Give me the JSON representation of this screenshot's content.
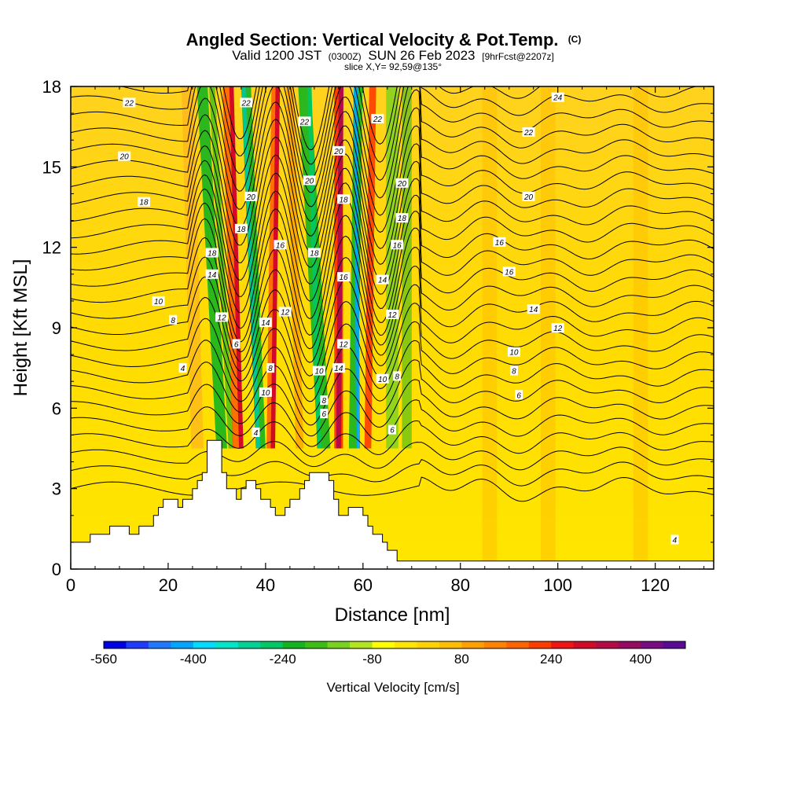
{
  "title": {
    "main": "Angled Section: Vertical Velocity & Pot.Temp.",
    "main_units": "(C)",
    "valid_prefix": "Valid 1200 JST",
    "valid_utc": "(0300Z)",
    "valid_date": "SUN 26 Feb 2023",
    "forecast": "[9hrFcst@2207z]",
    "slice": "slice X,Y= 92,59@135°"
  },
  "chart_data": {
    "type": "heatmap",
    "xlabel": "Distance [nm]",
    "ylabel": "Height [Kft MSL]",
    "xlim": [
      0,
      132
    ],
    "ylim": [
      0,
      18
    ],
    "x_ticks": [
      "0",
      "20",
      "40",
      "60",
      "80",
      "100",
      "120"
    ],
    "y_ticks": [
      "0",
      "3",
      "6",
      "9",
      "12",
      "15",
      "18"
    ],
    "colorbar": {
      "title": "Vertical Velocity [cm/s]",
      "range": [
        -560,
        480
      ],
      "labels": [
        "-560",
        "-400",
        "-240",
        "-80",
        "80",
        "240",
        "400"
      ],
      "colors": [
        "#0000e6",
        "#1e3cff",
        "#1f78ff",
        "#00a6ff",
        "#00dcff",
        "#00e6c8",
        "#00d296",
        "#00c864",
        "#14b41e",
        "#3cbe14",
        "#78d21e",
        "#b4e61e",
        "#ffff00",
        "#ffe600",
        "#ffd200",
        "#ffbe00",
        "#ffa000",
        "#ff8200",
        "#ff6400",
        "#ff3c00",
        "#f01414",
        "#d20a28",
        "#b40a46",
        "#960a64",
        "#780a82",
        "#5a0a96"
      ]
    },
    "terrain_kft": [
      [
        0,
        1.0
      ],
      [
        4,
        1.0
      ],
      [
        4,
        1.3
      ],
      [
        8,
        1.3
      ],
      [
        8,
        1.6
      ],
      [
        12,
        1.6
      ],
      [
        12,
        1.3
      ],
      [
        14,
        1.3
      ],
      [
        14,
        1.6
      ],
      [
        17,
        1.6
      ],
      [
        17,
        2.0
      ],
      [
        18,
        2.0
      ],
      [
        18,
        2.3
      ],
      [
        19,
        2.3
      ],
      [
        19,
        2.6
      ],
      [
        22,
        2.6
      ],
      [
        22,
        2.3
      ],
      [
        23,
        2.3
      ],
      [
        23,
        2.6
      ],
      [
        25,
        2.6
      ],
      [
        25,
        3.0
      ],
      [
        26,
        3.0
      ],
      [
        26,
        3.3
      ],
      [
        27,
        3.3
      ],
      [
        27,
        3.6
      ],
      [
        28,
        3.6
      ],
      [
        28,
        4.8
      ],
      [
        31,
        4.8
      ],
      [
        31,
        3.6
      ],
      [
        32,
        3.6
      ],
      [
        32,
        3.0
      ],
      [
        34,
        3.0
      ],
      [
        34,
        2.6
      ],
      [
        35,
        2.6
      ],
      [
        35,
        3.0
      ],
      [
        36,
        3.0
      ],
      [
        36,
        3.3
      ],
      [
        38,
        3.3
      ],
      [
        38,
        3.0
      ],
      [
        39,
        3.0
      ],
      [
        39,
        2.6
      ],
      [
        41,
        2.6
      ],
      [
        41,
        2.3
      ],
      [
        42,
        2.3
      ],
      [
        42,
        2.0
      ],
      [
        44,
        2.0
      ],
      [
        44,
        2.3
      ],
      [
        45,
        2.3
      ],
      [
        45,
        2.6
      ],
      [
        47,
        2.6
      ],
      [
        47,
        3.0
      ],
      [
        48,
        3.0
      ],
      [
        48,
        3.3
      ],
      [
        49,
        3.3
      ],
      [
        49,
        3.6
      ],
      [
        53,
        3.6
      ],
      [
        53,
        3.3
      ],
      [
        54,
        3.3
      ],
      [
        54,
        2.6
      ],
      [
        55,
        2.6
      ],
      [
        55,
        2.0
      ],
      [
        57,
        2.0
      ],
      [
        57,
        2.3
      ],
      [
        60,
        2.3
      ],
      [
        60,
        2.0
      ],
      [
        61,
        2.0
      ],
      [
        61,
        1.6
      ],
      [
        62,
        1.6
      ],
      [
        62,
        1.3
      ],
      [
        64,
        1.3
      ],
      [
        64,
        1.0
      ],
      [
        65,
        1.0
      ],
      [
        65,
        0.7
      ],
      [
        67,
        0.7
      ],
      [
        67,
        0.3
      ],
      [
        71,
        0.3
      ],
      [
        71,
        0.3
      ],
      [
        132,
        0.3
      ]
    ],
    "contour_labels": [
      {
        "x": 12,
        "y": 17.4,
        "text": "22"
      },
      {
        "x": 11,
        "y": 15.4,
        "text": "20"
      },
      {
        "x": 15,
        "y": 13.7,
        "text": "18"
      },
      {
        "x": 18,
        "y": 10.0,
        "text": "10"
      },
      {
        "x": 21,
        "y": 9.3,
        "text": "8"
      },
      {
        "x": 23,
        "y": 7.5,
        "text": "4"
      },
      {
        "x": 29,
        "y": 11.8,
        "text": "18"
      },
      {
        "x": 29,
        "y": 11.0,
        "text": "14"
      },
      {
        "x": 31,
        "y": 9.4,
        "text": "12"
      },
      {
        "x": 34,
        "y": 8.4,
        "text": "6"
      },
      {
        "x": 38,
        "y": 5.1,
        "text": "4"
      },
      {
        "x": 35,
        "y": 12.7,
        "text": "18"
      },
      {
        "x": 37,
        "y": 13.9,
        "text": "20"
      },
      {
        "x": 36,
        "y": 17.4,
        "text": "22"
      },
      {
        "x": 40,
        "y": 9.2,
        "text": "14"
      },
      {
        "x": 40,
        "y": 6.6,
        "text": "10"
      },
      {
        "x": 41,
        "y": 7.5,
        "text": "8"
      },
      {
        "x": 43,
        "y": 12.1,
        "text": "16"
      },
      {
        "x": 44,
        "y": 9.6,
        "text": "12"
      },
      {
        "x": 48,
        "y": 16.7,
        "text": "22"
      },
      {
        "x": 49,
        "y": 14.5,
        "text": "20"
      },
      {
        "x": 50,
        "y": 11.8,
        "text": "18"
      },
      {
        "x": 51,
        "y": 7.4,
        "text": "10"
      },
      {
        "x": 52,
        "y": 6.3,
        "text": "8"
      },
      {
        "x": 52,
        "y": 5.8,
        "text": "6"
      },
      {
        "x": 55,
        "y": 15.6,
        "text": "20"
      },
      {
        "x": 56,
        "y": 13.8,
        "text": "18"
      },
      {
        "x": 56,
        "y": 10.9,
        "text": "16"
      },
      {
        "x": 56,
        "y": 8.4,
        "text": "12"
      },
      {
        "x": 55,
        "y": 7.5,
        "text": "14"
      },
      {
        "x": 63,
        "y": 16.8,
        "text": "22"
      },
      {
        "x": 68,
        "y": 14.4,
        "text": "20"
      },
      {
        "x": 68,
        "y": 13.1,
        "text": "18"
      },
      {
        "x": 67,
        "y": 12.1,
        "text": "16"
      },
      {
        "x": 64,
        "y": 10.8,
        "text": "14"
      },
      {
        "x": 66,
        "y": 9.5,
        "text": "12"
      },
      {
        "x": 64,
        "y": 7.1,
        "text": "10"
      },
      {
        "x": 67,
        "y": 7.2,
        "text": "8"
      },
      {
        "x": 66,
        "y": 5.2,
        "text": "6"
      },
      {
        "x": 100,
        "y": 17.6,
        "text": "24"
      },
      {
        "x": 94,
        "y": 16.3,
        "text": "22"
      },
      {
        "x": 94,
        "y": 13.9,
        "text": "20"
      },
      {
        "x": 88,
        "y": 12.2,
        "text": "16"
      },
      {
        "x": 90,
        "y": 11.1,
        "text": "16"
      },
      {
        "x": 95,
        "y": 9.7,
        "text": "14"
      },
      {
        "x": 100,
        "y": 9.0,
        "text": "12"
      },
      {
        "x": 91,
        "y": 8.1,
        "text": "10"
      },
      {
        "x": 91,
        "y": 7.4,
        "text": "8"
      },
      {
        "x": 92,
        "y": 6.5,
        "text": "6"
      },
      {
        "x": 124,
        "y": 1.1,
        "text": "4"
      }
    ]
  }
}
